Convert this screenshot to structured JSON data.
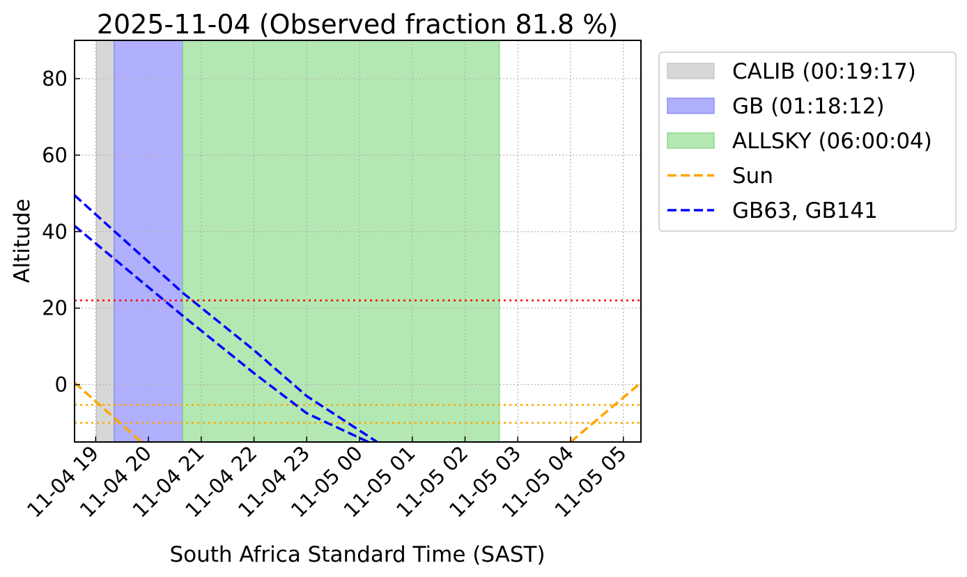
{
  "chart_data": {
    "type": "line",
    "title": "2025-11-04 (Observed fraction 81.8 %)",
    "xlabel": "South Africa Standard Time (SAST)",
    "ylabel": "Altitude",
    "xlim": [
      "2025-11-04 18:36",
      "2025-11-05 05:20"
    ],
    "ylim": [
      -15,
      90
    ],
    "grid": true,
    "legend_position": "outside right",
    "x_ticks": [
      "2025-11-04 19:00",
      "2025-11-04 20:00",
      "2025-11-04 21:00",
      "2025-11-04 22:00",
      "2025-11-04 23:00",
      "2025-11-05 00:00",
      "2025-11-05 01:00",
      "2025-11-05 02:00",
      "2025-11-05 03:00",
      "2025-11-05 04:00",
      "2025-11-05 05:00"
    ],
    "x_tick_labels": [
      "11-04 19",
      "11-04 20",
      "11-04 21",
      "11-04 22",
      "11-04 23",
      "11-05 00",
      "11-05 01",
      "11-05 02",
      "11-05 03",
      "11-05 04",
      "11-05 05"
    ],
    "y_ticks": [
      0,
      20,
      40,
      60,
      80
    ],
    "y_tick_labels": [
      "0",
      "20",
      "40",
      "60",
      "80"
    ],
    "spans": [
      {
        "name": "CALIB (00:19:17)",
        "start": "2025-11-04 19:01",
        "end": "2025-11-04 19:21",
        "color": "#d7d7d7",
        "edge": "#c0c0c0"
      },
      {
        "name": "GB (01:18:12)",
        "start": "2025-11-04 19:21",
        "end": "2025-11-04 20:39",
        "color": "#b0b0ff",
        "edge": "#8080ee"
      },
      {
        "name": "ALLSKY (06:00:04)",
        "start": "2025-11-04 20:39",
        "end": "2025-11-05 02:39",
        "color": "#b3e8b3",
        "edge": "#7fd07f"
      }
    ],
    "series": [
      {
        "name": "Sun",
        "color": "#ffa500",
        "style": "dashed",
        "segments": [
          [
            {
              "x": "2025-11-04 18:36",
              "y": 0.5
            },
            {
              "x": "2025-11-04 19:52",
              "y": -15
            }
          ],
          [
            {
              "x": "2025-11-05 04:00",
              "y": -15
            },
            {
              "x": "2025-11-05 05:20",
              "y": 0.5
            }
          ]
        ]
      },
      {
        "name": "GB63, GB141",
        "color": "#0000ff",
        "style": "dashed",
        "segments": [
          [
            {
              "x": "2025-11-04 18:36",
              "y": 49.5
            },
            {
              "x": "2025-11-04 20:39",
              "y": 24
            },
            {
              "x": "2025-11-04 22:00",
              "y": 9
            },
            {
              "x": "2025-11-04 23:00",
              "y": -3
            },
            {
              "x": "2025-11-05 00:20",
              "y": -15
            }
          ],
          [
            {
              "x": "2025-11-04 18:36",
              "y": 41.5
            },
            {
              "x": "2025-11-04 20:39",
              "y": 18
            },
            {
              "x": "2025-11-04 22:00",
              "y": 3
            },
            {
              "x": "2025-11-04 23:00",
              "y": -7.5
            },
            {
              "x": "2025-11-05 00:10",
              "y": -15
            }
          ]
        ]
      }
    ],
    "hlines": [
      {
        "y": 22,
        "color": "#ff0000",
        "style": "dotted"
      },
      {
        "y": -5.3,
        "color": "#ffa500",
        "style": "dotted"
      },
      {
        "y": -10,
        "color": "#ffa500",
        "style": "dotted"
      }
    ],
    "legend": [
      {
        "label": "CALIB (00:19:17)",
        "kind": "patch",
        "color": "#d7d7d7",
        "edge": "#c0c0c0"
      },
      {
        "label": "GB (01:18:12)",
        "kind": "patch",
        "color": "#b0b0ff",
        "edge": "#8080ee"
      },
      {
        "label": "ALLSKY (06:00:04)",
        "kind": "patch",
        "color": "#b3e8b3",
        "edge": "#7fd07f"
      },
      {
        "label": "Sun",
        "kind": "line",
        "color": "#ffa500"
      },
      {
        "label": "GB63, GB141",
        "kind": "line",
        "color": "#0000ff"
      }
    ]
  }
}
